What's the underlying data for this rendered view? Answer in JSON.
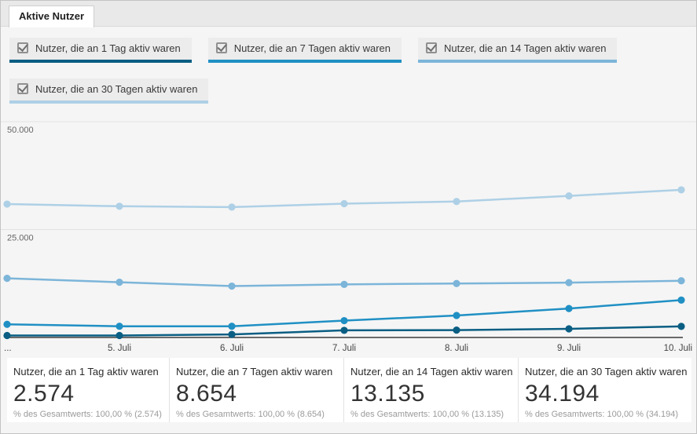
{
  "tab": {
    "label": "Aktive Nutzer"
  },
  "colors": {
    "day1": "#0a5e83",
    "day7": "#2090c4",
    "day14": "#7cb5d9",
    "day30": "#aed0e6",
    "axis": "#3c3c3c",
    "grid": "#e2e2e2",
    "axis_label": "#666666",
    "date_label": "#444444"
  },
  "legend": [
    {
      "label": "Nutzer, die an 1 Tag aktiv waren",
      "checked": true,
      "color": "#0a5e83"
    },
    {
      "label": "Nutzer, die an 7 Tagen aktiv waren",
      "checked": true,
      "color": "#2090c4"
    },
    {
      "label": "Nutzer, die an 14 Tagen aktiv waren",
      "checked": true,
      "color": "#7cb5d9"
    },
    {
      "label": "Nutzer, die an 30 Tagen aktiv waren",
      "checked": true,
      "color": "#aed0e6"
    }
  ],
  "chart_data": {
    "type": "line",
    "x": [
      "...",
      "5. Juli",
      "6. Juli",
      "7. Juli",
      "8. Juli",
      "9. Juli",
      "10. Juli"
    ],
    "series": [
      {
        "name": "Nutzer, die an 30 Tagen aktiv waren",
        "color": "#aed0e6",
        "values": [
          30900,
          30400,
          30200,
          31000,
          31500,
          32800,
          34194
        ]
      },
      {
        "name": "Nutzer, die an 14 Tagen aktiv waren",
        "color": "#7cb5d9",
        "values": [
          13700,
          12800,
          11900,
          12300,
          12500,
          12700,
          13135
        ]
      },
      {
        "name": "Nutzer, die an 7 Tagen aktiv waren",
        "color": "#2090c4",
        "values": [
          3050,
          2600,
          2600,
          3900,
          5100,
          6700,
          8654
        ]
      },
      {
        "name": "Nutzer, die an 1 Tag aktiv waren",
        "color": "#0a5e83",
        "values": [
          450,
          450,
          700,
          1650,
          1700,
          2000,
          2574
        ]
      }
    ],
    "yticks": [
      {
        "value": 50000,
        "label": "50.000"
      },
      {
        "value": 25000,
        "label": "25.000"
      }
    ],
    "ylim": [
      0,
      51000
    ],
    "grid": true,
    "legend_position": "top"
  },
  "cards": [
    {
      "title": "Nutzer, die an 1 Tag aktiv waren",
      "value": "2.574",
      "subtitle": "% des Gesamtwerts: 100,00 % (2.574)"
    },
    {
      "title": "Nutzer, die an 7 Tagen aktiv waren",
      "value": "8.654",
      "subtitle": "% des Gesamtwerts: 100,00 % (8.654)"
    },
    {
      "title": "Nutzer, die an 14 Tagen aktiv waren",
      "value": "13.135",
      "subtitle": "% des Gesamtwerts: 100,00 % (13.135)"
    },
    {
      "title": "Nutzer, die an 30 Tagen aktiv waren",
      "value": "34.194",
      "subtitle": "% des Gesamtwerts: 100,00 % (34.194)"
    }
  ]
}
